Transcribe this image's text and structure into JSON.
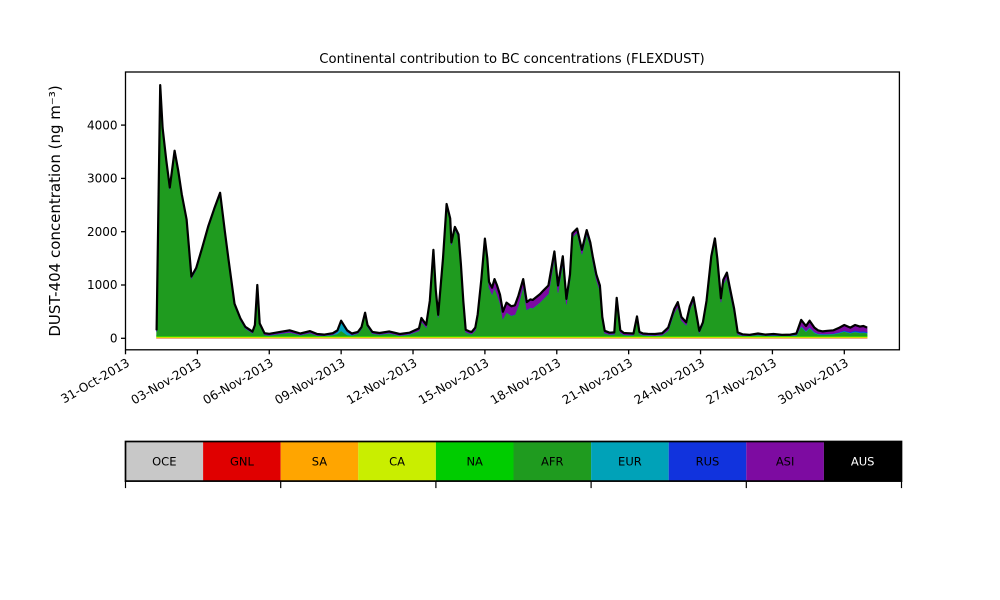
{
  "window": {
    "background": "#ffffff"
  },
  "chart_data": {
    "type": "area",
    "stacked": true,
    "title": "Continental contribution to BC concentrations (FLEXDUST)",
    "ylabel": "DUST-404 concentration (ng m⁻³)",
    "xlabel": "",
    "x_axis": {
      "tick_days": [
        0,
        3,
        6,
        9,
        12,
        15,
        18,
        21,
        24,
        27,
        30
      ],
      "tick_labels": [
        "31-Oct-2013",
        "03-Nov-2013",
        "06-Nov-2013",
        "09-Nov-2013",
        "12-Nov-2013",
        "15-Nov-2013",
        "18-Nov-2013",
        "21-Nov-2013",
        "24-Nov-2013",
        "27-Nov-2013",
        "30-Nov-2013"
      ],
      "xlim_days": [
        0,
        32.3
      ],
      "tick_rotation_deg": 30
    },
    "y_axis": {
      "ticks": [
        0,
        1000,
        2000,
        3000,
        4000
      ],
      "tick_labels": [
        "0",
        "1000",
        "2000",
        "3000",
        "4000"
      ],
      "ylim": [
        -215,
        4990
      ],
      "grid": false
    },
    "total_line_color": "#000000",
    "stack_order": [
      "OCE",
      "GNL",
      "SA",
      "CA",
      "NA",
      "AFR",
      "EUR",
      "RUS",
      "ASI",
      "AUS"
    ],
    "legend": {
      "position": "bottom-strip",
      "tick_every_n_boxes": 2,
      "items": [
        {
          "label": "OCE",
          "color": "#c8c8c8",
          "text_color": "#000000"
        },
        {
          "label": "GNL",
          "color": "#e00000",
          "text_color": "#000000"
        },
        {
          "label": "SA",
          "color": "#ffa500",
          "text_color": "#000000"
        },
        {
          "label": "CA",
          "color": "#c9ee00",
          "text_color": "#000000"
        },
        {
          "label": "NA",
          "color": "#00cc00",
          "text_color": "#000000"
        },
        {
          "label": "AFR",
          "color": "#1f9b1f",
          "text_color": "#000000"
        },
        {
          "label": "EUR",
          "color": "#00a2b8",
          "text_color": "#000000"
        },
        {
          "label": "RUS",
          "color": "#1133dd",
          "text_color": "#000000"
        },
        {
          "label": "ASI",
          "color": "#7d0ba1",
          "text_color": "#000000"
        },
        {
          "label": "AUS",
          "color": "#000000",
          "text_color": "#ffffff"
        }
      ]
    },
    "series": {
      "units": "ng m⁻³",
      "x_days": [
        1.3,
        1.45,
        1.55,
        1.7,
        1.85,
        2.05,
        2.2,
        2.35,
        2.55,
        2.75,
        2.95,
        3.2,
        3.45,
        3.7,
        3.95,
        4.15,
        4.3,
        4.55,
        4.8,
        5.0,
        5.3,
        5.4,
        5.5,
        5.6,
        5.8,
        6.0,
        6.45,
        6.85,
        7.3,
        7.7,
        8.0,
        8.3,
        8.65,
        8.85,
        9.0,
        9.25,
        9.45,
        9.7,
        9.85,
        10.0,
        10.1,
        10.3,
        10.6,
        11.0,
        11.45,
        11.85,
        12.25,
        12.35,
        12.55,
        12.7,
        12.85,
        12.95,
        13.05,
        13.25,
        13.4,
        13.55,
        13.6,
        13.75,
        13.9,
        14.0,
        14.1,
        14.2,
        14.35,
        14.45,
        14.6,
        14.7,
        14.85,
        15.0,
        15.1,
        15.17,
        15.3,
        15.4,
        15.5,
        15.63,
        15.75,
        15.9,
        16.1,
        16.25,
        16.4,
        16.6,
        16.75,
        16.9,
        17.0,
        17.3,
        17.45,
        17.65,
        17.9,
        18.05,
        18.25,
        18.4,
        18.55,
        18.65,
        18.85,
        19.05,
        19.25,
        19.4,
        19.5,
        19.65,
        19.8,
        19.9,
        20.0,
        20.2,
        20.4,
        20.5,
        20.65,
        20.8,
        20.95,
        21.2,
        21.35,
        21.45,
        21.6,
        21.8,
        22.1,
        22.4,
        22.65,
        22.9,
        23.05,
        23.2,
        23.4,
        23.55,
        23.7,
        23.85,
        23.95,
        24.1,
        24.25,
        24.45,
        24.6,
        24.7,
        24.85,
        24.95,
        25.1,
        25.2,
        25.4,
        25.55,
        25.75,
        26.05,
        26.4,
        26.7,
        27.05,
        27.4,
        27.75,
        28.0,
        28.2,
        28.4,
        28.55,
        28.75,
        28.9,
        29.1,
        29.3,
        29.55,
        29.8,
        30.0,
        30.25,
        30.45,
        30.65,
        30.8,
        30.95
      ],
      "total": [
        150,
        4750,
        3950,
        3350,
        2830,
        3520,
        3150,
        2700,
        2230,
        1160,
        1320,
        1700,
        2100,
        2430,
        2730,
        2000,
        1480,
        650,
        370,
        215,
        125,
        250,
        1000,
        280,
        95,
        85,
        120,
        150,
        90,
        135,
        80,
        70,
        95,
        150,
        330,
        150,
        90,
        120,
        210,
        480,
        250,
        120,
        100,
        130,
        80,
        105,
        185,
        380,
        255,
        700,
        1660,
        900,
        440,
        1500,
        2520,
        2250,
        1800,
        2090,
        1950,
        1390,
        700,
        160,
        130,
        120,
        200,
        450,
        1100,
        1870,
        1500,
        1060,
        950,
        1110,
        1000,
        820,
        500,
        670,
        600,
        620,
        800,
        1110,
        680,
        730,
        720,
        830,
        900,
        990,
        1630,
        990,
        1540,
        740,
        1200,
        1970,
        2060,
        1660,
        2030,
        1800,
        1540,
        1200,
        990,
        400,
        140,
        105,
        110,
        760,
        150,
        100,
        95,
        90,
        410,
        120,
        90,
        85,
        80,
        95,
        200,
        550,
        680,
        400,
        300,
        600,
        770,
        400,
        140,
        300,
        700,
        1540,
        1875,
        1500,
        750,
        1100,
        1233,
        1000,
        560,
        110,
        75,
        65,
        90,
        70,
        80,
        65,
        70,
        90,
        345,
        230,
        330,
        200,
        150,
        130,
        140,
        150,
        200,
        250,
        200,
        250,
        220,
        230,
        200
      ],
      "constant_layers": {
        "OCE": 3,
        "GNL": 3,
        "SA": 9,
        "CA": 20,
        "NA": 12
      },
      "EUR": [
        3,
        3,
        3,
        3,
        3,
        3,
        3,
        3,
        3,
        3,
        3,
        3,
        3,
        3,
        3,
        3,
        3,
        3,
        3,
        3,
        3,
        3,
        3,
        3,
        3,
        3,
        3,
        3,
        3,
        3,
        3,
        3,
        3,
        40,
        160,
        60,
        10,
        3,
        3,
        3,
        3,
        3,
        3,
        3,
        3,
        3,
        3,
        3,
        3,
        3,
        3,
        3,
        3,
        3,
        3,
        3,
        3,
        3,
        3,
        3,
        3,
        3,
        3,
        3,
        3,
        3,
        3,
        3,
        3,
        3,
        3,
        3,
        3,
        3,
        3,
        3,
        3,
        3,
        3,
        3,
        3,
        3,
        3,
        3,
        3,
        3,
        3,
        3,
        3,
        3,
        3,
        3,
        3,
        3,
        3,
        3,
        3,
        3,
        3,
        3,
        3,
        3,
        3,
        3,
        3,
        3,
        3,
        3,
        3,
        3,
        3,
        3,
        3,
        3,
        3,
        3,
        3,
        3,
        3,
        3,
        3,
        3,
        3,
        3,
        3,
        3,
        3,
        3,
        3,
        3,
        3,
        3,
        3,
        3,
        3,
        3,
        3,
        3,
        3,
        3,
        3,
        10,
        15,
        15,
        15,
        15,
        10,
        10,
        10,
        10,
        10,
        10,
        10,
        10,
        10,
        10,
        10
      ],
      "RUS": [
        3,
        3,
        3,
        3,
        3,
        3,
        3,
        3,
        3,
        3,
        3,
        3,
        3,
        3,
        3,
        3,
        3,
        3,
        3,
        3,
        3,
        3,
        3,
        3,
        3,
        3,
        3,
        3,
        3,
        3,
        3,
        3,
        3,
        3,
        3,
        3,
        3,
        3,
        3,
        3,
        3,
        3,
        3,
        3,
        3,
        3,
        3,
        3,
        3,
        3,
        3,
        3,
        3,
        3,
        3,
        3,
        3,
        3,
        3,
        3,
        3,
        3,
        3,
        3,
        3,
        3,
        3,
        3,
        3,
        3,
        3,
        3,
        3,
        3,
        3,
        3,
        3,
        3,
        3,
        3,
        3,
        3,
        3,
        3,
        3,
        3,
        3,
        3,
        3,
        3,
        3,
        3,
        3,
        3,
        3,
        3,
        3,
        3,
        3,
        3,
        3,
        3,
        3,
        3,
        3,
        3,
        3,
        3,
        3,
        3,
        3,
        3,
        3,
        3,
        3,
        3,
        3,
        3,
        3,
        3,
        3,
        3,
        3,
        3,
        3,
        3,
        3,
        3,
        3,
        3,
        3,
        3,
        3,
        3,
        3,
        3,
        3,
        3,
        3,
        3,
        3,
        3,
        3,
        3,
        3,
        3,
        3,
        3,
        3,
        3,
        10,
        15,
        15,
        20,
        20,
        20,
        15
      ],
      "ASI": [
        20,
        30,
        30,
        30,
        30,
        30,
        30,
        30,
        30,
        30,
        30,
        30,
        30,
        30,
        30,
        30,
        30,
        30,
        30,
        25,
        25,
        25,
        30,
        25,
        25,
        25,
        30,
        35,
        25,
        30,
        25,
        20,
        25,
        25,
        25,
        25,
        25,
        25,
        30,
        35,
        30,
        25,
        25,
        30,
        25,
        25,
        40,
        60,
        50,
        50,
        40,
        45,
        45,
        40,
        40,
        40,
        40,
        40,
        45,
        50,
        50,
        40,
        35,
        35,
        50,
        60,
        70,
        80,
        90,
        100,
        120,
        150,
        160,
        150,
        130,
        180,
        170,
        170,
        180,
        120,
        140,
        150,
        150,
        150,
        150,
        150,
        120,
        130,
        110,
        100,
        90,
        70,
        70,
        80,
        70,
        70,
        80,
        90,
        90,
        60,
        40,
        30,
        30,
        60,
        40,
        30,
        30,
        25,
        50,
        30,
        25,
        25,
        25,
        30,
        50,
        70,
        80,
        60,
        50,
        60,
        70,
        50,
        30,
        40,
        50,
        60,
        60,
        80,
        70,
        80,
        90,
        90,
        70,
        30,
        20,
        15,
        20,
        15,
        20,
        15,
        15,
        25,
        110,
        90,
        120,
        80,
        60,
        50,
        55,
        60,
        80,
        100,
        80,
        100,
        90,
        95,
        80
      ],
      "AUS": 0,
      "AFR": "derived_total_minus_all_other_layers"
    }
  }
}
